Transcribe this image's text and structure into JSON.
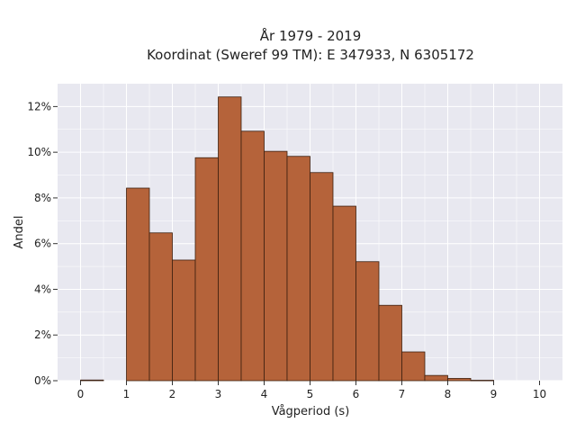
{
  "chart_data": {
    "type": "bar",
    "title": "År 1979 - 2019",
    "subtitle": "Koordinat (Sweref 99 TM): E 347933, N 6305172",
    "xlabel": "Vågperiod (s)",
    "ylabel": "Andel",
    "xlim": [
      -0.5,
      10.5
    ],
    "ylim": [
      0,
      0.13
    ],
    "x_ticks": [
      0,
      1,
      2,
      3,
      4,
      5,
      6,
      7,
      8,
      9,
      10
    ],
    "x_tick_labels": [
      "0",
      "1",
      "2",
      "3",
      "4",
      "5",
      "6",
      "7",
      "8",
      "9",
      "10"
    ],
    "y_ticks": [
      0,
      0.02,
      0.04,
      0.06,
      0.08,
      0.1,
      0.12
    ],
    "y_tick_labels": [
      "0%",
      "2%",
      "4%",
      "6%",
      "8%",
      "10%",
      "12%"
    ],
    "bin_width": 0.5,
    "bins": [
      {
        "x": 0.0,
        "value": 0.0003
      },
      {
        "x": 0.5,
        "value": 0.0
      },
      {
        "x": 1.0,
        "value": 0.0843
      },
      {
        "x": 1.5,
        "value": 0.0647
      },
      {
        "x": 2.0,
        "value": 0.0528
      },
      {
        "x": 2.5,
        "value": 0.0976
      },
      {
        "x": 3.0,
        "value": 0.1242
      },
      {
        "x": 3.5,
        "value": 0.1092
      },
      {
        "x": 4.0,
        "value": 0.1004
      },
      {
        "x": 4.5,
        "value": 0.0982
      },
      {
        "x": 5.0,
        "value": 0.0911
      },
      {
        "x": 5.5,
        "value": 0.0764
      },
      {
        "x": 6.0,
        "value": 0.0521
      },
      {
        "x": 6.5,
        "value": 0.033
      },
      {
        "x": 7.0,
        "value": 0.0126
      },
      {
        "x": 7.5,
        "value": 0.0023
      },
      {
        "x": 8.0,
        "value": 0.001
      },
      {
        "x": 8.5,
        "value": 0.0002
      }
    ],
    "grid": true,
    "bar_color": "#b5633a",
    "bar_edge_color": "#3d2010",
    "plot_background": "#e8e8f0",
    "grid_color": "#ffffff"
  }
}
